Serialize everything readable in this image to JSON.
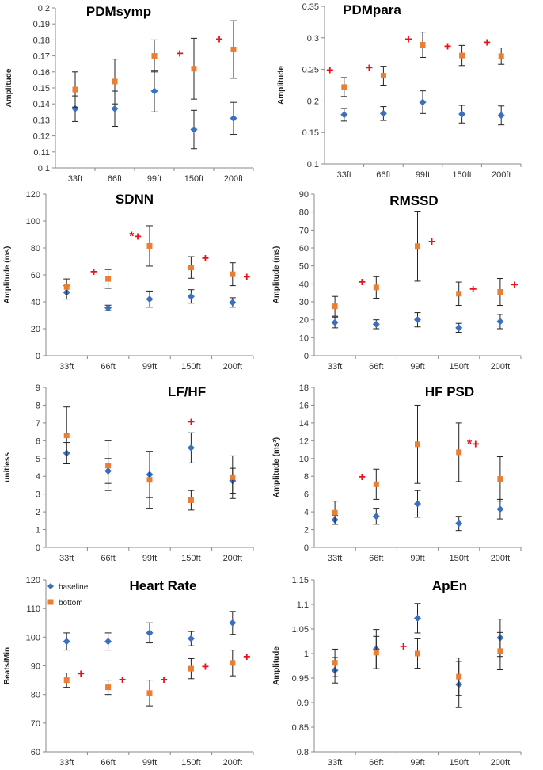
{
  "colors": {
    "baseline": "#3a6fc4",
    "bottom": "#ed7d31",
    "significance": "#e8121a",
    "axis": "#888888",
    "errorbar": "#222222"
  },
  "legend": [
    {
      "name": "baseline",
      "marker": "diamond"
    },
    {
      "name": "bottom",
      "marker": "square"
    }
  ],
  "chart_data": [
    {
      "type": "scatter",
      "title": "PDMsymp",
      "ylabel": "Amplitude",
      "ylim": [
        0.1,
        0.2
      ],
      "yticks": [
        "0.1",
        "0.11",
        "0.12",
        "0.13",
        "0.14",
        "0.15",
        "0.16",
        "0.17",
        "0.18",
        "0.19",
        "0.2"
      ],
      "categories": [
        "33ft",
        "66ft",
        "99ft",
        "150ft",
        "200ft"
      ],
      "series": [
        {
          "name": "baseline",
          "values": [
            0.137,
            0.137,
            0.148,
            0.124,
            0.131
          ],
          "err": [
            0.008,
            0.011,
            0.013,
            0.012,
            0.01
          ]
        },
        {
          "name": "bottom",
          "values": [
            0.149,
            0.154,
            0.17,
            0.162,
            0.174
          ],
          "err": [
            0.011,
            0.014,
            0.01,
            0.019,
            0.018
          ]
        }
      ],
      "annotations": [
        {
          "text": "+",
          "category": 3,
          "value": 0.172,
          "offset": "left"
        },
        {
          "text": "+",
          "category": 4,
          "value": 0.181,
          "offset": "left"
        }
      ]
    },
    {
      "type": "scatter",
      "title": "PDMpara",
      "ylabel": "Amplitude",
      "ylim": [
        0.1,
        0.35
      ],
      "yticks": [
        "0.1",
        "0.15",
        "0.2",
        "0.25",
        "0.3",
        "0.35"
      ],
      "categories": [
        "33ft",
        "66ft",
        "99ft",
        "150ft",
        "200ft"
      ],
      "series": [
        {
          "name": "baseline",
          "values": [
            0.178,
            0.18,
            0.198,
            0.179,
            0.177
          ],
          "err": [
            0.01,
            0.011,
            0.018,
            0.014,
            0.015
          ]
        },
        {
          "name": "bottom",
          "values": [
            0.222,
            0.24,
            0.289,
            0.272,
            0.271
          ],
          "err": [
            0.015,
            0.015,
            0.02,
            0.016,
            0.013
          ]
        }
      ],
      "annotations": [
        {
          "text": "+",
          "category": 0,
          "value": 0.25,
          "offset": "left"
        },
        {
          "text": "+",
          "category": 1,
          "value": 0.254,
          "offset": "left"
        },
        {
          "text": "+",
          "category": 2,
          "value": 0.299,
          "offset": "left"
        },
        {
          "text": "+",
          "category": 3,
          "value": 0.288,
          "offset": "left"
        },
        {
          "text": "+",
          "category": 4,
          "value": 0.294,
          "offset": "left"
        }
      ]
    },
    {
      "type": "scatter",
      "title": "SDNN",
      "ylabel": "Amplitude (ms)",
      "ylim": [
        0,
        120
      ],
      "yticks": [
        "0",
        "20",
        "40",
        "60",
        "80",
        "100",
        "120"
      ],
      "categories": [
        "33ft",
        "66ft",
        "99ft",
        "150ft",
        "200ft"
      ],
      "series": [
        {
          "name": "baseline",
          "values": [
            47,
            35.5,
            42,
            44,
            39.5
          ],
          "err": [
            5,
            2,
            6,
            5,
            3.5
          ]
        },
        {
          "name": "bottom",
          "values": [
            51,
            57,
            81.5,
            65.5,
            60.5
          ],
          "err": [
            6,
            7,
            15,
            8,
            8.5
          ]
        }
      ],
      "annotations": [
        {
          "text": "+",
          "category": 1,
          "value": 63,
          "offset": "left"
        },
        {
          "text": "*+",
          "category": 2,
          "value": 89,
          "offset": "left"
        },
        {
          "text": "+",
          "category": 3,
          "value": 73,
          "offset": "right"
        },
        {
          "text": "+",
          "category": 4,
          "value": 59,
          "offset": "right"
        }
      ]
    },
    {
      "type": "scatter",
      "title": "RMSSD",
      "ylabel": "Amplitude (ms)",
      "ylim": [
        0,
        90
      ],
      "yticks": [
        "0",
        "10",
        "20",
        "30",
        "40",
        "50",
        "60",
        "70",
        "80",
        "90"
      ],
      "categories": [
        "33ft",
        "66ft",
        "99ft",
        "150ft",
        "200ft"
      ],
      "series": [
        {
          "name": "baseline",
          "values": [
            18.5,
            17.5,
            20,
            15.5,
            19
          ],
          "err": [
            3,
            2.5,
            4,
            2.5,
            4
          ]
        },
        {
          "name": "bottom",
          "values": [
            27.5,
            38,
            61,
            34.5,
            35.5
          ],
          "err": [
            5.5,
            6,
            19.5,
            6.5,
            7.5
          ]
        }
      ],
      "annotations": [
        {
          "text": "+",
          "category": 1,
          "value": 41.5,
          "offset": "left"
        },
        {
          "text": "+",
          "category": 2,
          "value": 64,
          "offset": "right"
        },
        {
          "text": "+",
          "category": 3,
          "value": 37.5,
          "offset": "right"
        },
        {
          "text": "+",
          "category": 4,
          "value": 40,
          "offset": "right"
        }
      ]
    },
    {
      "type": "scatter",
      "title": "LF/HF",
      "ylabel": "unitless",
      "ylim": [
        0,
        9
      ],
      "yticks": [
        "0",
        "1",
        "2",
        "3",
        "4",
        "5",
        "6",
        "7",
        "8",
        "9"
      ],
      "categories": [
        "33ft",
        "66ft",
        "99ft",
        "150ft",
        "200ft"
      ],
      "series": [
        {
          "name": "baseline",
          "values": [
            5.3,
            4.3,
            4.1,
            5.6,
            3.75
          ],
          "err": [
            0.6,
            0.7,
            1.3,
            0.85,
            0.7
          ]
        },
        {
          "name": "bottom",
          "values": [
            6.3,
            4.6,
            3.8,
            2.65,
            3.95
          ],
          "err": [
            1.6,
            1.4,
            1.6,
            0.55,
            1.2
          ]
        }
      ],
      "annotations": [
        {
          "text": "+",
          "category": 3,
          "value": 7.1,
          "offset": "center"
        }
      ]
    },
    {
      "type": "scatter",
      "title": "HF PSD",
      "ylabel": "Amplitude (ms²)",
      "ylim": [
        0,
        18
      ],
      "yticks": [
        "0",
        "2",
        "4",
        "6",
        "8",
        "10",
        "12",
        "14",
        "16",
        "18"
      ],
      "categories": [
        "33ft",
        "66ft",
        "99ft",
        "150ft",
        "200ft"
      ],
      "series": [
        {
          "name": "baseline",
          "values": [
            3.1,
            3.5,
            4.9,
            2.7,
            4.3
          ],
          "err": [
            0.5,
            0.9,
            1.5,
            0.8,
            1.1
          ]
        },
        {
          "name": "bottom",
          "values": [
            3.9,
            7.1,
            11.6,
            10.7,
            7.7
          ],
          "err": [
            1.3,
            1.7,
            4.4,
            3.3,
            2.5
          ]
        }
      ],
      "annotations": [
        {
          "text": "+",
          "category": 1,
          "value": 8,
          "offset": "left"
        },
        {
          "text": "*+",
          "category": 3,
          "value": 11.7,
          "offset": "right"
        }
      ]
    },
    {
      "type": "scatter",
      "title": "Heart Rate",
      "ylabel": "Beats/Min",
      "ylim": [
        60,
        120
      ],
      "yticks": [
        "60",
        "70",
        "80",
        "90",
        "100",
        "110",
        "120"
      ],
      "categories": [
        "33ft",
        "66ft",
        "99ft",
        "150ft",
        "200ft"
      ],
      "show_legend": true,
      "series": [
        {
          "name": "baseline",
          "values": [
            98.5,
            98.5,
            101.5,
            99.5,
            105
          ],
          "err": [
            3,
            3,
            3.5,
            2.5,
            4
          ]
        },
        {
          "name": "bottom",
          "values": [
            85,
            82.5,
            80.5,
            89,
            91
          ],
          "err": [
            2.5,
            2.5,
            4.5,
            3.5,
            4.5
          ]
        }
      ],
      "annotations": [
        {
          "text": "+",
          "category": 0,
          "value": 87.5,
          "offset": "right"
        },
        {
          "text": "+",
          "category": 1,
          "value": 85.5,
          "offset": "right"
        },
        {
          "text": "+",
          "category": 2,
          "value": 85.5,
          "offset": "right"
        },
        {
          "text": "+",
          "category": 3,
          "value": 90,
          "offset": "right"
        },
        {
          "text": "+",
          "category": 4,
          "value": 93.5,
          "offset": "right"
        }
      ]
    },
    {
      "type": "scatter",
      "title": "ApEn",
      "ylabel": "Amplitude",
      "ylim": [
        0.8,
        1.15
      ],
      "yticks": [
        "0.8",
        "0.85",
        "0.9",
        "0.95",
        "1",
        "1.05",
        "1.1",
        "1.15"
      ],
      "categories": [
        "33ft",
        "66ft",
        "99ft",
        "150ft",
        "200ft"
      ],
      "series": [
        {
          "name": "baseline",
          "values": [
            0.966,
            1.009,
            1.072,
            0.937,
            1.032
          ],
          "err": [
            0.026,
            0.04,
            0.03,
            0.047,
            0.038
          ]
        },
        {
          "name": "bottom",
          "values": [
            0.981,
            1.002,
            1.0,
            0.953,
            1.005
          ],
          "err": [
            0.028,
            0.033,
            0.03,
            0.038,
            0.038
          ]
        }
      ],
      "annotations": [
        {
          "text": "+",
          "category": 2,
          "value": 1.016,
          "offset": "left"
        }
      ]
    }
  ]
}
